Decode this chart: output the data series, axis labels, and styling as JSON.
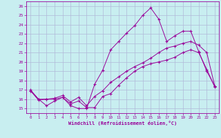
{
  "xlabel": "Windchill (Refroidissement éolien,°C)",
  "background_color": "#c8eef0",
  "line_color": "#990099",
  "grid_color": "#b0b8d8",
  "xlim": [
    -0.5,
    23.5
  ],
  "ylim": [
    14.5,
    26.5
  ],
  "yticks": [
    15,
    16,
    17,
    18,
    19,
    20,
    21,
    22,
    23,
    24,
    25,
    26
  ],
  "xticks": [
    0,
    1,
    2,
    3,
    4,
    5,
    6,
    7,
    8,
    9,
    10,
    11,
    12,
    13,
    14,
    15,
    16,
    17,
    18,
    19,
    20,
    21,
    22,
    23
  ],
  "line1_x": [
    0,
    1,
    2,
    3,
    4,
    5,
    6,
    7,
    8,
    9,
    10,
    11,
    12,
    13,
    14,
    15,
    16,
    17,
    18,
    19,
    20,
    21,
    22,
    23
  ],
  "line1_y": [
    17.0,
    16.0,
    15.3,
    15.8,
    16.2,
    15.5,
    15.8,
    15.1,
    15.1,
    16.3,
    16.6,
    17.5,
    18.3,
    19.0,
    19.5,
    19.8,
    20.0,
    20.2,
    20.5,
    21.0,
    21.3,
    21.0,
    19.2,
    17.3
  ],
  "line2_x": [
    0,
    1,
    2,
    3,
    4,
    5,
    6,
    7,
    8,
    9,
    10,
    11,
    12,
    13,
    14,
    15,
    16,
    17,
    18,
    19,
    20,
    21,
    22,
    23
  ],
  "line2_y": [
    16.9,
    15.9,
    16.0,
    16.0,
    16.2,
    15.3,
    15.0,
    15.0,
    17.6,
    19.1,
    21.3,
    22.2,
    23.1,
    23.9,
    25.0,
    25.8,
    24.6,
    22.2,
    22.8,
    23.3,
    23.3,
    21.1,
    19.0,
    17.4
  ],
  "line3_x": [
    0,
    1,
    2,
    3,
    4,
    5,
    6,
    7,
    8,
    9,
    10,
    11,
    12,
    13,
    14,
    15,
    16,
    17,
    18,
    19,
    20,
    21,
    22,
    23
  ],
  "line3_y": [
    16.9,
    16.0,
    16.0,
    16.1,
    16.4,
    15.7,
    16.2,
    15.3,
    16.3,
    16.9,
    17.8,
    18.4,
    19.0,
    19.5,
    19.9,
    20.4,
    21.0,
    21.5,
    21.7,
    22.0,
    22.2,
    21.8,
    21.0,
    17.4
  ]
}
